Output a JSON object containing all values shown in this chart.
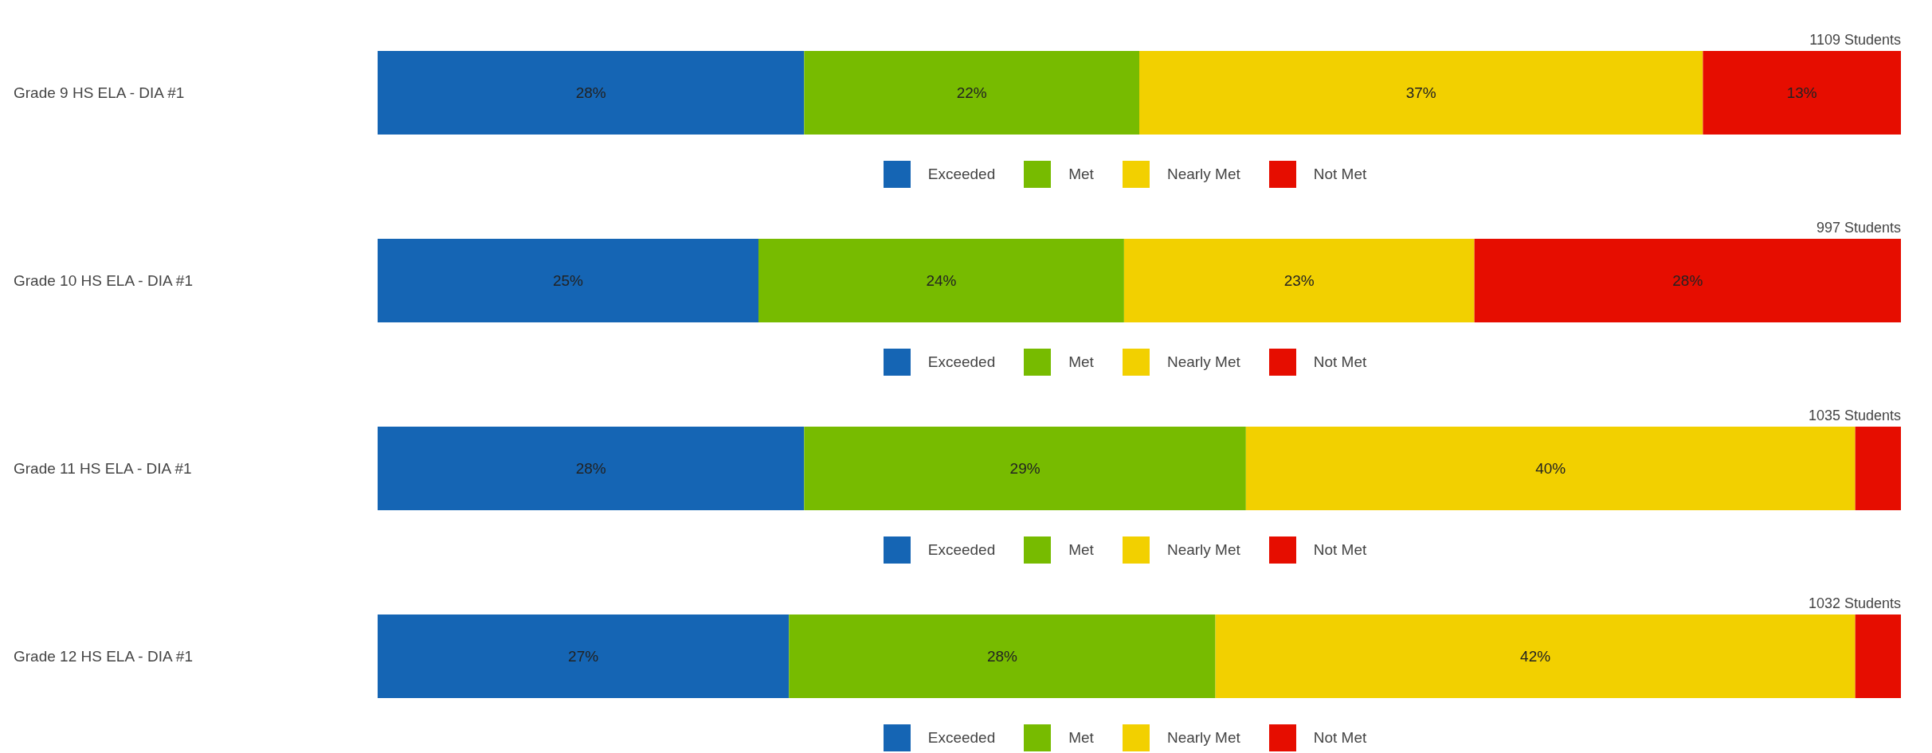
{
  "chart_data": [
    {
      "type": "bar",
      "orientation": "horizontal",
      "stacked": true,
      "legend": "bottom",
      "categories": [
        "Grade 9 HS ELA - DIA #1"
      ],
      "annotations": [
        "1109 Students"
      ],
      "series": [
        {
          "name": "Exceeded",
          "color": "#1565b4",
          "values": [
            28
          ],
          "value_labels": [
            "28%"
          ]
        },
        {
          "name": "Met",
          "color": "#77bb00",
          "values": [
            22
          ],
          "value_labels": [
            "22%"
          ]
        },
        {
          "name": "Nearly Met",
          "color": "#f2d000",
          "values": [
            37
          ],
          "value_labels": [
            "37%"
          ]
        },
        {
          "name": "Not Met",
          "color": "#e60d00",
          "values": [
            13
          ],
          "value_labels": [
            "13%"
          ]
        }
      ]
    },
    {
      "type": "bar",
      "orientation": "horizontal",
      "stacked": true,
      "legend": "bottom",
      "categories": [
        "Grade 10 HS ELA - DIA #1"
      ],
      "annotations": [
        "997 Students"
      ],
      "series": [
        {
          "name": "Exceeded",
          "color": "#1565b4",
          "values": [
            25
          ],
          "value_labels": [
            "25%"
          ]
        },
        {
          "name": "Met",
          "color": "#77bb00",
          "values": [
            24
          ],
          "value_labels": [
            "24%"
          ]
        },
        {
          "name": "Nearly Met",
          "color": "#f2d000",
          "values": [
            23
          ],
          "value_labels": [
            "23%"
          ]
        },
        {
          "name": "Not Met",
          "color": "#e60d00",
          "values": [
            28
          ],
          "value_labels": [
            "28%"
          ]
        }
      ]
    },
    {
      "type": "bar",
      "orientation": "horizontal",
      "stacked": true,
      "legend": "bottom",
      "categories": [
        "Grade 11 HS ELA - DIA #1"
      ],
      "annotations": [
        "1035 Students"
      ],
      "series": [
        {
          "name": "Exceeded",
          "color": "#1565b4",
          "values": [
            28
          ],
          "value_labels": [
            "28%"
          ]
        },
        {
          "name": "Met",
          "color": "#77bb00",
          "values": [
            29
          ],
          "value_labels": [
            "29%"
          ]
        },
        {
          "name": "Nearly Met",
          "color": "#f2d000",
          "values": [
            40
          ],
          "value_labels": [
            "40%"
          ]
        },
        {
          "name": "Not Met",
          "color": "#e60d00",
          "values": [
            3
          ],
          "value_labels": [
            null
          ]
        }
      ]
    },
    {
      "type": "bar",
      "orientation": "horizontal",
      "stacked": true,
      "legend": "bottom",
      "categories": [
        "Grade 12 HS ELA - DIA #1"
      ],
      "annotations": [
        "1032 Students"
      ],
      "series": [
        {
          "name": "Exceeded",
          "color": "#1565b4",
          "values": [
            27
          ],
          "value_labels": [
            "27%"
          ]
        },
        {
          "name": "Met",
          "color": "#77bb00",
          "values": [
            28
          ],
          "value_labels": [
            "28%"
          ]
        },
        {
          "name": "Nearly Met",
          "color": "#f2d000",
          "values": [
            42
          ],
          "value_labels": [
            "42%"
          ]
        },
        {
          "name": "Not Met",
          "color": "#e60d00",
          "values": [
            3
          ],
          "value_labels": [
            null
          ]
        }
      ]
    }
  ]
}
